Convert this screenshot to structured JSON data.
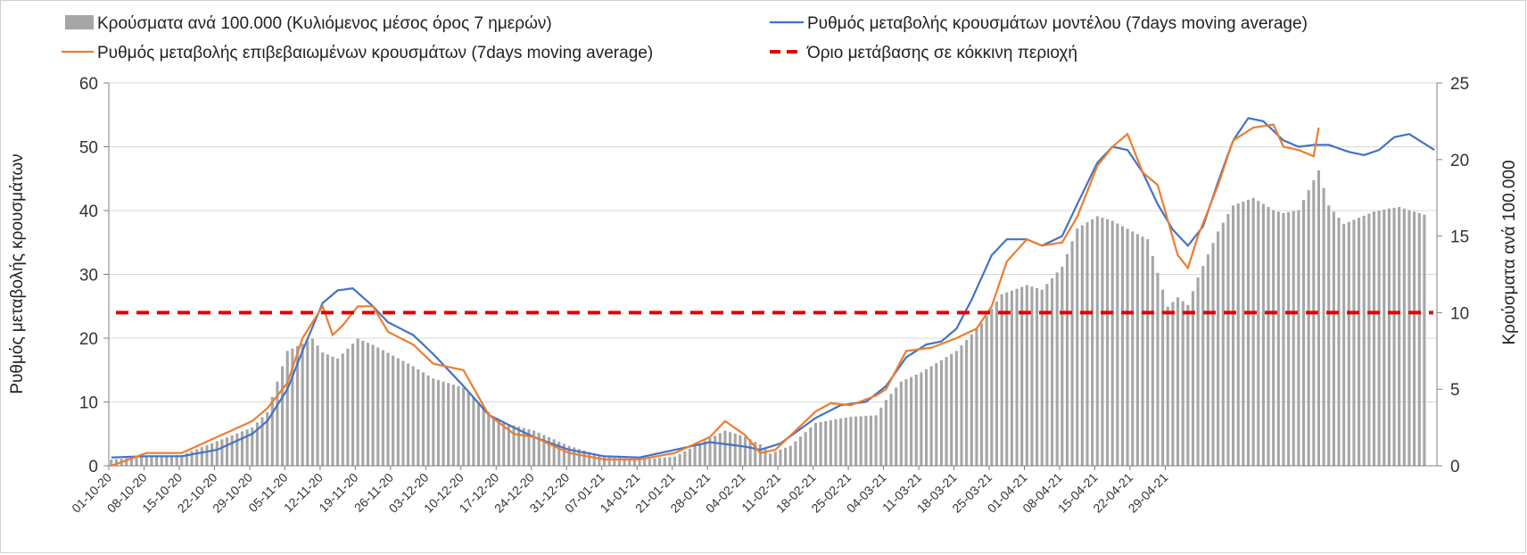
{
  "chart_data": {
    "type": "bar+line",
    "legend": {
      "bars": "Κρούσματα ανά 100.000 (Κυλιόμενος μέσος όρος 7 ημερών)",
      "model": "Ρυθμός μεταβολής κρουσμάτων μοντέλου (7days moving average)",
      "confirmed": "Ρυθμός μεταβολής επιβεβαιωμένων κρουσμάτων (7days moving average)",
      "threshold": "Όριο μετάβασης σε κόκκινη περιοχή"
    },
    "y_left_label": "Ρυθμός μεταβολής κρουσμάτων",
    "y_right_label": "Κρούσματα ανά 100.000",
    "y_left_ticks": [
      "0",
      "10",
      "20",
      "30",
      "40",
      "50",
      "60"
    ],
    "y_right_ticks": [
      "0",
      "5",
      "10",
      "15",
      "20",
      "25"
    ],
    "y_left_range": [
      0,
      60
    ],
    "y_right_range": [
      0,
      25
    ],
    "x_tick_labels": [
      "01-10-20",
      "08-10-20",
      "15-10-20",
      "22-10-20",
      "29-10-20",
      "05-11-20",
      "12-11-20",
      "19-11-20",
      "26-11-20",
      "03-12-20",
      "10-12-20",
      "17-12-20",
      "24-12-20",
      "31-12-20",
      "07-01-21",
      "14-01-21",
      "21-01-21",
      "28-01-21",
      "04-02-21",
      "11-02-21",
      "18-02-21",
      "25-02-21",
      "04-03-21",
      "11-03-21",
      "18-03-21",
      "25-03-21",
      "01-04-21",
      "08-04-21",
      "15-04-21",
      "22-04-21",
      "29-04-21"
    ],
    "x_start": "01-10-20",
    "x_end": "03-05-21",
    "threshold_value": 24,
    "colors": {
      "bars": "#a6a6a6",
      "model": "#4472c4",
      "confirmed": "#ed7d31",
      "threshold": "#e00000"
    },
    "series_bars_per100k_anchors": [
      [
        0,
        0.4
      ],
      [
        7,
        0.6
      ],
      [
        14,
        0.7
      ],
      [
        21,
        1.6
      ],
      [
        28,
        2.5
      ],
      [
        31,
        3.5
      ],
      [
        35,
        7.5
      ],
      [
        40,
        8.3
      ],
      [
        42,
        7.4
      ],
      [
        45,
        7.0
      ],
      [
        49,
        8.3
      ],
      [
        52,
        7.9
      ],
      [
        56,
        7.2
      ],
      [
        60,
        6.5
      ],
      [
        64,
        5.7
      ],
      [
        70,
        5.1
      ],
      [
        77,
        2.9
      ],
      [
        84,
        2.3
      ],
      [
        91,
        1.3
      ],
      [
        98,
        0.6
      ],
      [
        105,
        0.4
      ],
      [
        112,
        0.6
      ],
      [
        119,
        1.8
      ],
      [
        122,
        2.3
      ],
      [
        126,
        1.9
      ],
      [
        129,
        1.4
      ],
      [
        131,
        0.8
      ],
      [
        135,
        1.3
      ],
      [
        140,
        2.8
      ],
      [
        147,
        3.2
      ],
      [
        152,
        3.3
      ],
      [
        154,
        4.3
      ],
      [
        157,
        5.5
      ],
      [
        161,
        6.1
      ],
      [
        168,
        7.5
      ],
      [
        173,
        9.3
      ],
      [
        177,
        11.2
      ],
      [
        182,
        11.8
      ],
      [
        185,
        11.5
      ],
      [
        189,
        13.0
      ],
      [
        192,
        15.5
      ],
      [
        196,
        16.3
      ],
      [
        199,
        16.0
      ],
      [
        203,
        15.3
      ],
      [
        206,
        14.8
      ],
      [
        210,
        10.4
      ],
      [
        212,
        11.0
      ],
      [
        214,
        10.5
      ],
      [
        216,
        12.3
      ],
      [
        220,
        15.3
      ],
      [
        223,
        17.0
      ],
      [
        227,
        17.5
      ],
      [
        231,
        16.7
      ],
      [
        233,
        16.5
      ],
      [
        236,
        16.7
      ],
      [
        238,
        18.0
      ],
      [
        240,
        19.3
      ],
      [
        242,
        17.0
      ],
      [
        245,
        15.8
      ],
      [
        248,
        16.2
      ],
      [
        251,
        16.6
      ],
      [
        254,
        16.8
      ],
      [
        256,
        16.9
      ],
      [
        259,
        16.6
      ],
      [
        261,
        16.4
      ]
    ],
    "series_bars_per100k_note": "Κρούσματα ανά 100.000",
    "series_confirmed_anchors": [
      [
        0,
        0
      ],
      [
        7,
        2
      ],
      [
        14,
        2
      ],
      [
        21,
        4.5
      ],
      [
        28,
        7
      ],
      [
        31,
        9
      ],
      [
        35,
        13
      ],
      [
        38,
        20
      ],
      [
        42,
        25
      ],
      [
        44,
        20.5
      ],
      [
        46,
        22
      ],
      [
        49,
        25
      ],
      [
        52,
        25
      ],
      [
        55,
        21
      ],
      [
        60,
        19
      ],
      [
        64,
        16
      ],
      [
        70,
        15
      ],
      [
        75,
        8
      ],
      [
        80,
        5
      ],
      [
        84,
        4.5
      ],
      [
        91,
        2
      ],
      [
        98,
        1.0
      ],
      [
        105,
        1
      ],
      [
        112,
        2.0
      ],
      [
        119,
        4.5
      ],
      [
        122,
        7
      ],
      [
        126,
        4.8
      ],
      [
        129,
        2.0
      ],
      [
        132,
        2.5
      ],
      [
        140,
        8.5
      ],
      [
        143,
        9.8
      ],
      [
        147,
        9.5
      ],
      [
        152,
        11
      ],
      [
        154,
        12
      ],
      [
        158,
        18
      ],
      [
        163,
        18.5
      ],
      [
        168,
        20
      ],
      [
        172,
        21.5
      ],
      [
        175,
        25
      ],
      [
        178,
        32
      ],
      [
        182,
        35.5
      ],
      [
        185,
        34.5
      ],
      [
        189,
        35
      ],
      [
        192,
        39
      ],
      [
        196,
        47
      ],
      [
        199,
        50
      ],
      [
        202,
        52
      ],
      [
        205,
        46
      ],
      [
        208,
        44
      ],
      [
        212,
        33
      ],
      [
        214,
        31
      ],
      [
        216,
        36
      ],
      [
        220,
        44
      ],
      [
        223,
        51
      ],
      [
        227,
        53
      ],
      [
        231,
        53.5
      ],
      [
        233,
        50
      ],
      [
        236,
        49.5
      ],
      [
        239,
        48.5
      ],
      [
        240,
        53
      ]
    ],
    "series_model_anchors": [
      [
        0,
        1.3
      ],
      [
        7,
        1.5
      ],
      [
        14,
        1.5
      ],
      [
        21,
        2.5
      ],
      [
        28,
        5.0
      ],
      [
        31,
        7.0
      ],
      [
        35,
        12.0
      ],
      [
        38,
        18.0
      ],
      [
        42,
        25.5
      ],
      [
        45,
        27.5
      ],
      [
        48,
        27.8
      ],
      [
        52,
        25.0
      ],
      [
        55,
        22.5
      ],
      [
        60,
        20.5
      ],
      [
        64,
        17.5
      ],
      [
        70,
        12.5
      ],
      [
        75,
        8.0
      ],
      [
        80,
        6.0
      ],
      [
        84,
        4.5
      ],
      [
        91,
        2.5
      ],
      [
        98,
        1.5
      ],
      [
        105,
        1.3
      ],
      [
        112,
        2.5
      ],
      [
        119,
        3.7
      ],
      [
        126,
        3.0
      ],
      [
        129,
        2.5
      ],
      [
        133,
        3.5
      ],
      [
        140,
        7.5
      ],
      [
        145,
        9.5
      ],
      [
        150,
        10.0
      ],
      [
        154,
        12.5
      ],
      [
        158,
        17.0
      ],
      [
        162,
        19.0
      ],
      [
        165,
        19.5
      ],
      [
        168,
        21.5
      ],
      [
        171,
        26.0
      ],
      [
        175,
        33.0
      ],
      [
        178,
        35.5
      ],
      [
        182,
        35.5
      ],
      [
        185,
        34.5
      ],
      [
        189,
        36.0
      ],
      [
        192,
        41.0
      ],
      [
        196,
        47.5
      ],
      [
        199,
        50.0
      ],
      [
        202,
        49.5
      ],
      [
        205,
        46.0
      ],
      [
        208,
        41.0
      ],
      [
        211,
        37.0
      ],
      [
        214,
        34.5
      ],
      [
        217,
        37.5
      ],
      [
        220,
        44.5
      ],
      [
        223,
        51.0
      ],
      [
        226,
        54.5
      ],
      [
        229,
        54.0
      ],
      [
        233,
        51.0
      ],
      [
        236,
        50.0
      ],
      [
        239,
        50.3
      ],
      [
        242,
        50.3
      ],
      [
        246,
        49.2
      ],
      [
        249,
        48.7
      ],
      [
        252,
        49.5
      ],
      [
        255,
        51.5
      ],
      [
        258,
        52.0
      ],
      [
        261,
        50.5
      ],
      [
        263,
        49.5
      ]
    ]
  }
}
